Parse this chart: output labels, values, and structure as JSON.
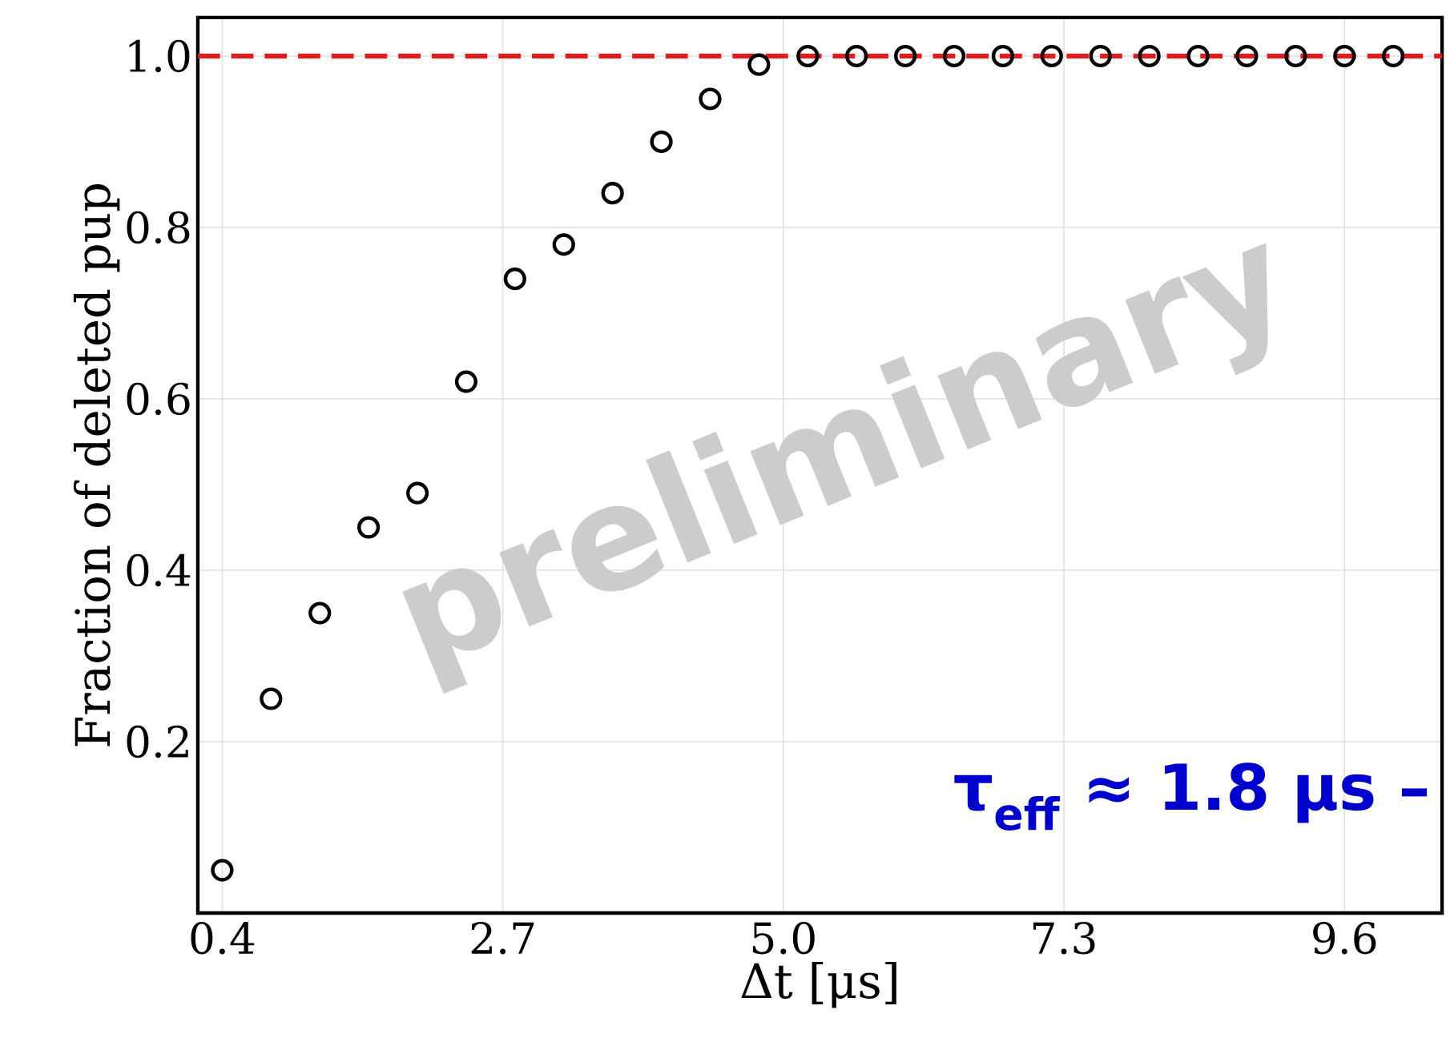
{
  "chart_data": {
    "type": "scatter",
    "xlabel": "Δt [μs]",
    "ylabel": "Fraction of deleted pup",
    "x": [
      0.4,
      0.8,
      1.2,
      1.6,
      2.0,
      2.4,
      2.8,
      3.2,
      3.6,
      4.0,
      4.4,
      4.8,
      5.2,
      5.6,
      6.0,
      6.4,
      6.8,
      7.2,
      7.6,
      8.0,
      8.4,
      8.8,
      9.2,
      9.6,
      10.0
    ],
    "series": [
      {
        "color": "#000000",
        "values": [
          0.05,
          0.25,
          0.35,
          0.45,
          0.49,
          0.62,
          0.74,
          0.78,
          0.84,
          0.9,
          0.95,
          0.99,
          1,
          1,
          1,
          1,
          1,
          1,
          1,
          1,
          1,
          1,
          1,
          1,
          1
        ]
      }
    ],
    "xlim": [
      0.2,
      10.4
    ],
    "ylim": [
      0,
      1.045
    ],
    "xticks": [
      0.4,
      2.7,
      {
        "value": 5,
        "label": "5.0"
      },
      7.3,
      9.6
    ],
    "yticks": [
      0.2,
      0.4,
      0.6,
      0.8,
      {
        "value": 1,
        "label": "1.0"
      }
    ],
    "ref_lines": [
      {
        "axis": "y",
        "value": 1,
        "color": "#e41a1c",
        "line_style": "dashed"
      }
    ],
    "annotations": [
      "preliminary",
      "τ$_{eff}$ ≈ 1.8 μs –"
    ],
    "grid": true,
    "marker": "circle"
  }
}
